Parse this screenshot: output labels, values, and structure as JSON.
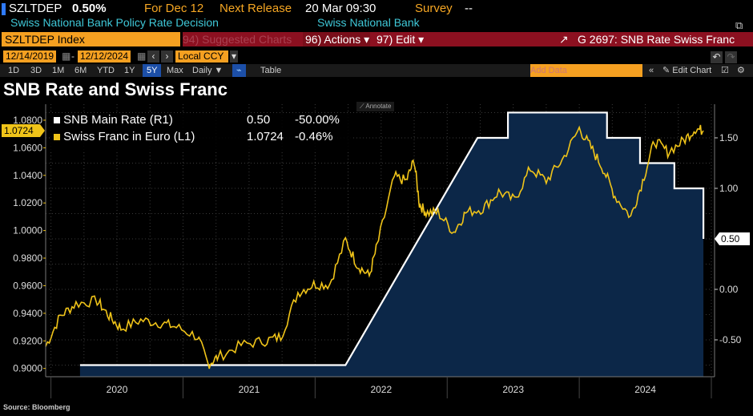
{
  "header": {
    "ticker": "SZLTDEP",
    "value": "0.50%",
    "for_label": "For Dec 12",
    "next_release_label": "Next Release",
    "next_release": "20 Mar 09:30",
    "survey_label": "Survey",
    "survey_value": "--",
    "description": "Swiss National Bank Policy Rate Decision",
    "source_org": "Swiss National Bank"
  },
  "toolbar": {
    "security": "SZLTDEP Index",
    "suggested": "94) Suggested Charts",
    "actions": "96) Actions",
    "edit": "97) Edit",
    "chart_title": "G 2697: SNB Rate Swiss Franc",
    "start_date": "12/14/2019",
    "end_date": "12/12/2024",
    "currency": "Local CCY",
    "add_data_placeholder": "Add Data",
    "edit_chart": "Edit Chart",
    "periods": [
      "1D",
      "3D",
      "1M",
      "6M",
      "YTD",
      "1Y",
      "5Y",
      "Max"
    ],
    "active_period": "5Y",
    "frequency": "Daily",
    "table": "Table"
  },
  "chart_title": "SNB Rate and Swiss Franc",
  "annotate": "Annotate",
  "source": "Source: Bloomberg",
  "colors": {
    "rate": "#ffffff",
    "franc": "#f0c419",
    "fill": "#0c2748"
  },
  "chart_data": {
    "type": "line",
    "title": "SNB Rate and Swiss Franc",
    "x_unit": "decimal year",
    "xlim": [
      2019.96,
      2025.0
    ],
    "x_tick_labels": [
      "2020",
      "2021",
      "2022",
      "2023",
      "2024"
    ],
    "left_axis": {
      "ylim": [
        0.894,
        1.0916
      ],
      "ticks": [
        "0.9000",
        "0.9200",
        "0.9400",
        "0.9600",
        "0.9800",
        "1.0000",
        "1.0200",
        "1.0400",
        "1.0600",
        "1.0800"
      ]
    },
    "right_axis": {
      "ylim": [
        -0.865,
        1.833
      ],
      "ticks": [
        "-0.50",
        "0.00",
        "0.50",
        "1.00",
        "1.50"
      ]
    },
    "series": [
      {
        "name": "SNB Main Rate (R1)",
        "axis": "right",
        "last": "0.50",
        "change": "-50.00%",
        "last_tag": "0.50",
        "x": [
          2020.22,
          2022.23,
          2023.23,
          2023.46,
          2023.46,
          2024.21,
          2024.21,
          2024.46,
          2024.46,
          2024.72,
          2024.72,
          2024.94,
          2024.94
        ],
        "y": [
          -0.75,
          -0.75,
          1.5,
          1.5,
          1.75,
          1.75,
          1.5,
          1.5,
          1.25,
          1.25,
          1.0,
          1.0,
          0.5
        ]
      },
      {
        "name": "Swiss Franc in Euro (L1)",
        "axis": "left",
        "last": "1.0724",
        "change": "-0.46%",
        "last_tag": "1.0724",
        "x": [
          2019.96,
          2020.07,
          2020.19,
          2020.35,
          2020.44,
          2020.53,
          2020.68,
          2020.83,
          2020.95,
          2021.11,
          2021.19,
          2021.26,
          2021.44,
          2021.62,
          2021.74,
          2021.87,
          2021.99,
          2022.11,
          2022.23,
          2022.32,
          2022.41,
          2022.48,
          2022.6,
          2022.69,
          2022.75,
          2022.79,
          2022.84,
          2022.93,
          2023.05,
          2023.14,
          2023.27,
          2023.39,
          2023.51,
          2023.63,
          2023.75,
          2023.87,
          2024.0,
          2024.09,
          2024.18,
          2024.27,
          2024.39,
          2024.48,
          2024.57,
          2024.67,
          2024.79,
          2024.88,
          2024.94
        ],
        "y": [
          0.916,
          0.938,
          0.947,
          0.949,
          0.938,
          0.929,
          0.935,
          0.933,
          0.93,
          0.923,
          0.903,
          0.908,
          0.917,
          0.92,
          0.923,
          0.955,
          0.961,
          0.961,
          0.993,
          0.975,
          0.967,
          0.993,
          1.039,
          1.036,
          1.051,
          1.019,
          1.013,
          1.013,
          0.999,
          1.013,
          1.016,
          1.028,
          1.022,
          1.045,
          1.036,
          1.051,
          1.074,
          1.06,
          1.045,
          1.025,
          1.01,
          1.036,
          1.065,
          1.057,
          1.065,
          1.074,
          1.0724
        ]
      }
    ]
  }
}
